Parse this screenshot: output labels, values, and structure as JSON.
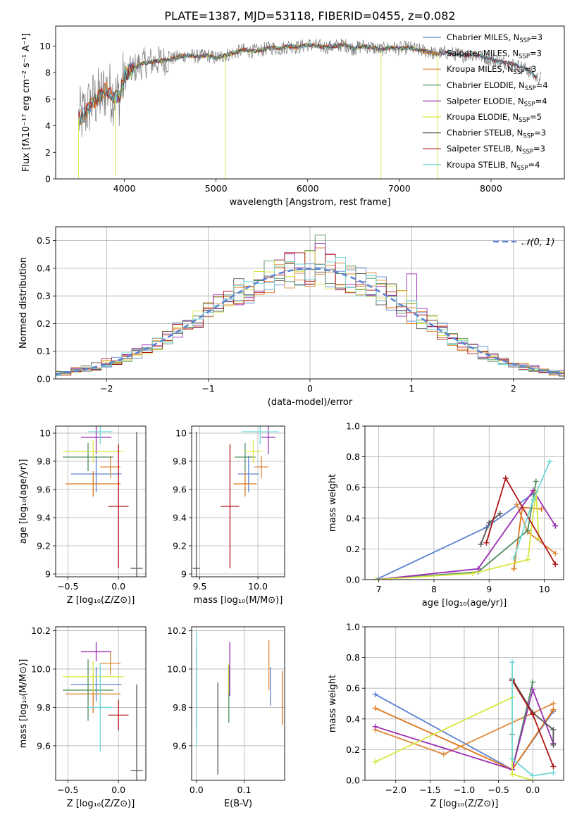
{
  "figure": {
    "title": "PLATE=1387, MJD=53118, FIBERID=0455, z=0.082"
  },
  "colors": {
    "Chabrier MILES": "#5b83d2",
    "Salpeter MILES": "#e0761a",
    "Kroupa MILES": "#e08a3c",
    "Chabrier ELODIE": "#4f8f5f",
    "Salpeter ELODIE": "#9a2db3",
    "Kroupa ELODIE": "#d8e640",
    "Chabrier STELIB": "#555555",
    "Salpeter STELIB": "#b01515",
    "Kroupa STELIB": "#6fd6d6",
    "grid": "#b0b0b0",
    "normal_curve": "#5b83d2"
  },
  "chart_data": [
    {
      "id": "spectrum",
      "type": "line",
      "xlabel": "wavelength [Angstrom, rest frame]",
      "ylabel": "Flux [fλ10⁻¹⁷ erg cm⁻² s⁻¹ A⁻¹]",
      "xlim": [
        3250,
        8800
      ],
      "ylim": [
        0,
        11.5
      ],
      "xticks": [
        4000,
        5000,
        6000,
        7000,
        8000
      ],
      "yticks": [
        0,
        2,
        4,
        6,
        8,
        10
      ],
      "grid": false,
      "legend_position": "right",
      "legend": [
        {
          "label": "Chabrier MILES, N",
          "sub": "SSP",
          "tail": "=3",
          "color": "#5b83d2"
        },
        {
          "label": "Salpeter MILES, N",
          "sub": "SSP",
          "tail": "=3",
          "color": "#e0761a"
        },
        {
          "label": "Kroupa MILES, N",
          "sub": "SSP",
          "tail": "=3",
          "color": "#e08a3c"
        },
        {
          "label": "Chabrier ELODIE, N",
          "sub": "SSP",
          "tail": "=4",
          "color": "#4f8f5f"
        },
        {
          "label": "Salpeter ELODIE, N",
          "sub": "SSP",
          "tail": "=4",
          "color": "#9a2db3"
        },
        {
          "label": "Kroupa ELODIE, N",
          "sub": "SSP",
          "tail": "=5",
          "color": "#d8e640"
        },
        {
          "label": "Chabrier STELIB, N",
          "sub": "SSP",
          "tail": "=3",
          "color": "#555555"
        },
        {
          "label": "Salpeter STELIB, N",
          "sub": "SSP",
          "tail": "=3",
          "color": "#b01515"
        },
        {
          "label": "Kroupa STELIB, N",
          "sub": "SSP",
          "tail": "=4",
          "color": "#6fd6d6"
        }
      ],
      "model_start": [
        3500,
        3500,
        3500,
        3900,
        3900,
        3900,
        3500,
        3500,
        3500
      ],
      "model_end": [
        7400,
        7400,
        7400,
        8400,
        8400,
        7400,
        8500,
        8500,
        8500
      ],
      "envelope": {
        "x": [
          3500,
          3550,
          3600,
          3650,
          3700,
          3750,
          3800,
          3850,
          3900,
          3950,
          4000,
          4050,
          4100,
          4200,
          4300,
          4400,
          4500,
          4600,
          4700,
          4800,
          4900,
          5000,
          5100,
          5200,
          5300,
          5400,
          5500,
          5600,
          5700,
          5800,
          5900,
          6000,
          6100,
          6200,
          6300,
          6400,
          6500,
          6600,
          6700,
          6800,
          6900,
          7000,
          7100,
          7200,
          7300,
          7400,
          7500,
          7600,
          7700,
          7800,
          7900,
          8000,
          8100,
          8200,
          8300,
          8400,
          8500
        ],
        "y": [
          4.5,
          4.8,
          5.3,
          5.8,
          6.0,
          6.3,
          6.8,
          6.5,
          6.2,
          6.3,
          7.8,
          8.0,
          8.3,
          8.7,
          8.8,
          8.9,
          9.0,
          9.2,
          9.3,
          9.2,
          9.3,
          9.1,
          9.3,
          9.5,
          9.7,
          9.6,
          9.7,
          9.9,
          9.8,
          10.0,
          9.9,
          10.1,
          10.0,
          9.9,
          10.0,
          10.1,
          9.8,
          10.0,
          9.9,
          9.7,
          9.9,
          9.8,
          9.9,
          9.7,
          9.6,
          9.4,
          9.5,
          9.4,
          9.3,
          9.4,
          9.2,
          9.0,
          8.8,
          8.7,
          8.5,
          8.2,
          7.6
        ]
      }
    },
    {
      "id": "residuals",
      "type": "histogram",
      "xlabel": "(data-model)/error",
      "ylabel": "Normed distribution",
      "xlim": [
        -2.5,
        2.5
      ],
      "ylim": [
        0,
        0.55
      ],
      "xticks": [
        -2,
        -1,
        0,
        1,
        2
      ],
      "xticklabels": [
        "−2",
        "−1",
        "0",
        "1",
        "2"
      ],
      "yticks": [
        0.0,
        0.1,
        0.2,
        0.3,
        0.4,
        0.5
      ],
      "yticklabels": [
        "0.0",
        "0.1",
        "0.2",
        "0.3",
        "0.4",
        "0.5"
      ],
      "grid": true,
      "bin_width": 0.1,
      "legend": [
        {
          "label": "𝒩(0, 1)",
          "color": "#5b83d2",
          "style": "dashed"
        }
      ],
      "peak_bins": [
        {
          "x": 0.1,
          "height": 0.52,
          "color": "#4f8f5f"
        },
        {
          "x": 0.1,
          "height": 0.49,
          "color": "#9a2db3"
        },
        {
          "x": 0.2,
          "height": 0.45,
          "color": "#b01515"
        },
        {
          "x": -0.3,
          "height": 0.43,
          "color": "#9a2db3"
        },
        {
          "x": 1.0,
          "height": 0.38,
          "color": "#9a2db3"
        }
      ]
    },
    {
      "id": "age-vs-Z",
      "type": "errorbar",
      "xlabel": "Z [log₁₀(Z/Z⊙)]",
      "ylabel": "age  [log₁₀(age/yr)]",
      "xlim": [
        -0.62,
        0.27
      ],
      "ylim": [
        8.98,
        10.05
      ],
      "xticks": [
        -0.5,
        0.0
      ],
      "xticklabels": [
        "−0.5",
        "0.0"
      ],
      "yticks": [
        9.0,
        9.2,
        9.4,
        9.6,
        9.8,
        10.0
      ],
      "grid": true,
      "points": [
        {
          "model": "Chabrier MILES",
          "x": -0.22,
          "y": 9.71,
          "xerr": 0.25,
          "yerr": 0.13
        },
        {
          "model": "Salpeter MILES",
          "x": -0.25,
          "y": 9.64,
          "xerr": 0.27,
          "yerr": 0.09
        },
        {
          "model": "Kroupa MILES",
          "x": -0.08,
          "y": 9.76,
          "xerr": 0.1,
          "yerr": 0.08
        },
        {
          "model": "Chabrier ELODIE",
          "x": -0.3,
          "y": 9.83,
          "xerr": 0.25,
          "yerr": 0.1
        },
        {
          "model": "Salpeter ELODIE",
          "x": -0.22,
          "y": 9.97,
          "xerr": 0.15,
          "yerr": 0.12
        },
        {
          "model": "Kroupa ELODIE",
          "x": -0.25,
          "y": 9.87,
          "xerr": 0.3,
          "yerr": 0.08
        },
        {
          "model": "Chabrier STELIB",
          "x": 0.18,
          "y": 9.04,
          "xerr": 0.06,
          "yerr": 0.97
        },
        {
          "model": "Salpeter STELIB",
          "x": 0.0,
          "y": 9.48,
          "xerr": 0.1,
          "yerr": 0.44
        },
        {
          "model": "Kroupa STELIB",
          "x": -0.18,
          "y": 10.01,
          "xerr": 0.12,
          "yerr": 0.09
        }
      ]
    },
    {
      "id": "age-vs-mass",
      "type": "errorbar",
      "xlabel": "mass [log₁₀(M/M⊙)]",
      "ylabel": "",
      "xlim": [
        9.43,
        10.23
      ],
      "ylim": [
        8.98,
        10.05
      ],
      "xticks": [
        9.5,
        10.0
      ],
      "xticklabels": [
        "9.5",
        "10.0"
      ],
      "yticks": [
        9.0,
        9.2,
        9.4,
        9.6,
        9.8,
        10.0
      ],
      "grid": true,
      "points": [
        {
          "model": "Chabrier MILES",
          "x": 9.92,
          "y": 9.71,
          "xerr": 0.09,
          "yerr": 0.13
        },
        {
          "model": "Salpeter MILES",
          "x": 9.89,
          "y": 9.64,
          "xerr": 0.1,
          "yerr": 0.09
        },
        {
          "model": "Kroupa MILES",
          "x": 10.03,
          "y": 9.76,
          "xerr": 0.06,
          "yerr": 0.08
        },
        {
          "model": "Chabrier ELODIE",
          "x": 9.89,
          "y": 9.83,
          "xerr": 0.09,
          "yerr": 0.1
        },
        {
          "model": "Salpeter ELODIE",
          "x": 10.09,
          "y": 9.97,
          "xerr": 0.06,
          "yerr": 0.12
        },
        {
          "model": "Kroupa ELODIE",
          "x": 9.96,
          "y": 9.87,
          "xerr": 0.08,
          "yerr": 0.08
        },
        {
          "model": "Chabrier STELIB",
          "x": 9.47,
          "y": 9.04,
          "xerr": 0.03,
          "yerr": 0.97
        },
        {
          "model": "Salpeter STELIB",
          "x": 9.76,
          "y": 9.48,
          "xerr": 0.08,
          "yerr": 0.44
        },
        {
          "model": "Kroupa STELIB",
          "x": 10.02,
          "y": 10.01,
          "xerr": 0.16,
          "yerr": 0.09
        }
      ]
    },
    {
      "id": "massweight-vs-age",
      "type": "line",
      "xlabel": "age  [log₁₀(age/yr)]",
      "ylabel": "mass weight",
      "xlim": [
        6.75,
        10.35
      ],
      "ylim": [
        0,
        1.0
      ],
      "xticks": [
        7,
        8,
        9,
        10
      ],
      "xticklabels": [
        "7",
        "8",
        "9",
        "10"
      ],
      "yticks": [
        0.0,
        0.2,
        0.4,
        0.6,
        0.8,
        1.0
      ],
      "yticklabels": [
        "0.0",
        "0.2",
        "0.4",
        "0.6",
        "0.8",
        "1.0"
      ],
      "grid": true,
      "series": [
        {
          "model": "Chabrier MILES",
          "x": [
            6.95,
            8.95,
            9.8
          ],
          "y": [
            0.0,
            0.34,
            0.56
          ]
        },
        {
          "model": "Salpeter MILES",
          "x": [
            9.45,
            9.6,
            9.95
          ],
          "y": [
            0.07,
            0.47,
            0.46
          ]
        },
        {
          "model": "Kroupa MILES",
          "x": [
            9.5,
            9.7,
            10.2
          ],
          "y": [
            0.49,
            0.31,
            0.17
          ]
        },
        {
          "model": "Chabrier ELODIE",
          "x": [
            6.95,
            8.8,
            9.7,
            9.85
          ],
          "y": [
            0.0,
            0.05,
            0.32,
            0.64
          ]
        },
        {
          "model": "Salpeter ELODIE",
          "x": [
            6.95,
            8.8,
            9.8,
            10.2
          ],
          "y": [
            0.0,
            0.07,
            0.58,
            0.35
          ]
        },
        {
          "model": "Kroupa ELODIE",
          "x": [
            6.95,
            8.7,
            9.7,
            9.85,
            9.9
          ],
          "y": [
            0.0,
            0.04,
            0.13,
            0.57,
            0.27
          ]
        },
        {
          "model": "Chabrier STELIB",
          "x": [
            8.85,
            9.0,
            9.2
          ],
          "y": [
            0.23,
            0.37,
            0.43
          ]
        },
        {
          "model": "Salpeter STELIB",
          "x": [
            8.95,
            9.3,
            10.2
          ],
          "y": [
            0.24,
            0.66,
            0.1
          ]
        },
        {
          "model": "Kroupa STELIB",
          "x": [
            9.45,
            9.8,
            10.1
          ],
          "y": [
            0.14,
            0.52,
            0.77
          ]
        }
      ]
    },
    {
      "id": "mass-vs-Z",
      "type": "errorbar",
      "xlabel": "Z [log₁₀(Z/Z⊙)]",
      "ylabel": "mass [log₁₀(M/M⊙)]",
      "xlim": [
        -0.62,
        0.27
      ],
      "ylim": [
        9.42,
        10.22
      ],
      "xticks": [
        -0.5,
        0.0
      ],
      "xticklabels": [
        "−0.5",
        "0.0"
      ],
      "yticks": [
        9.6,
        9.8,
        10.0,
        10.2
      ],
      "yticklabels": [
        "9.6",
        "9.8",
        "10.0",
        "10.2"
      ],
      "grid": true,
      "points": [
        {
          "model": "Chabrier MILES",
          "x": -0.22,
          "y": 9.92,
          "xerr": 0.25,
          "yerr": 0.09
        },
        {
          "model": "Salpeter MILES",
          "x": -0.25,
          "y": 9.87,
          "xerr": 0.27,
          "yerr": 0.1
        },
        {
          "model": "Kroupa MILES",
          "x": -0.08,
          "y": 10.03,
          "xerr": 0.1,
          "yerr": 0.06
        },
        {
          "model": "Chabrier ELODIE",
          "x": -0.3,
          "y": 9.89,
          "xerr": 0.25,
          "yerr": 0.16
        },
        {
          "model": "Salpeter ELODIE",
          "x": -0.22,
          "y": 10.09,
          "xerr": 0.15,
          "yerr": 0.05
        },
        {
          "model": "Kroupa ELODIE",
          "x": -0.25,
          "y": 9.96,
          "xerr": 0.3,
          "yerr": 0.08
        },
        {
          "model": "Chabrier STELIB",
          "x": 0.18,
          "y": 9.47,
          "xerr": 0.06,
          "yerr": 0.45
        },
        {
          "model": "Salpeter STELIB",
          "x": 0.0,
          "y": 9.76,
          "xerr": 0.1,
          "yerr": 0.08
        },
        {
          "model": "Kroupa STELIB",
          "x": -0.18,
          "y": 9.8,
          "xerr": 0.12,
          "yerr": 0.23
        }
      ]
    },
    {
      "id": "mass-vs-EBV",
      "type": "errorbar",
      "xlabel": "E(B-V)",
      "ylabel": "",
      "xlim": [
        -0.01,
        0.185
      ],
      "ylim": [
        9.42,
        10.22
      ],
      "xticks": [
        0.0,
        0.1
      ],
      "xticklabels": [
        "0.0",
        "0.1"
      ],
      "yticks": [
        9.6,
        9.8,
        10.0,
        10.2
      ],
      "yticklabels": [
        "9.6",
        "9.8",
        "10.0",
        "10.2"
      ],
      "grid": true,
      "points": [
        {
          "model": "Chabrier MILES",
          "x": 0.155,
          "y": 9.91,
          "xerr": 0.0,
          "yerr": 0.1
        },
        {
          "model": "Salpeter MILES",
          "x": 0.18,
          "y": 9.85,
          "xerr": 0.0,
          "yerr": 0.14
        },
        {
          "model": "Kroupa MILES",
          "x": 0.152,
          "y": 10.02,
          "xerr": 0.0,
          "yerr": 0.13
        },
        {
          "model": "Chabrier ELODIE",
          "x": 0.068,
          "y": 9.87,
          "xerr": 0.0,
          "yerr": 0.15
        },
        {
          "model": "Salpeter ELODIE",
          "x": 0.07,
          "y": 10.0,
          "xerr": 0.0,
          "yerr": 0.14
        },
        {
          "model": "Kroupa ELODIE",
          "x": 0.067,
          "y": 9.95,
          "xerr": 0.0,
          "yerr": 0.08
        },
        {
          "model": "Chabrier STELIB",
          "x": 0.045,
          "y": 9.69,
          "xerr": 0.0,
          "yerr": 0.24
        },
        {
          "model": "Salpeter STELIB",
          "x": 0.0,
          "y": 9.9,
          "xerr": 0.0,
          "yerr": 0.2
        },
        {
          "model": "Kroupa STELIB",
          "x": 0.0,
          "y": 9.9,
          "xerr": 0.0,
          "yerr": 0.3
        }
      ]
    },
    {
      "id": "massweight-vs-Z",
      "type": "line",
      "xlabel": "Z [log₁₀(Z/Z⊙)]",
      "ylabel": "mass weight",
      "xlim": [
        -2.45,
        0.45
      ],
      "ylim": [
        0,
        1.0
      ],
      "xticks": [
        -2.0,
        -1.5,
        -1.0,
        -0.5,
        0.0
      ],
      "xticklabels": [
        "−2.0",
        "−1.5",
        "−1.0",
        "−0.5",
        "0.0"
      ],
      "yticks": [
        0.0,
        0.2,
        0.4,
        0.6,
        0.8,
        1.0
      ],
      "yticklabels": [
        "0.0",
        "0.2",
        "0.4",
        "0.6",
        "0.8",
        "1.0"
      ],
      "grid": true,
      "series": [
        {
          "model": "Chabrier MILES",
          "x": [
            -2.3,
            -0.3,
            0.3
          ],
          "y": [
            0.56,
            0.07,
            0.45
          ]
        },
        {
          "model": "Salpeter MILES",
          "x": [
            -2.3,
            -0.3,
            0.3
          ],
          "y": [
            0.47,
            0.07,
            0.46
          ]
        },
        {
          "model": "Kroupa MILES",
          "x": [
            -2.3,
            -1.3,
            0.3
          ],
          "y": [
            0.33,
            0.17,
            0.5
          ]
        },
        {
          "model": "Chabrier ELODIE",
          "x": [
            -0.3,
            -0.3,
            0.0
          ],
          "y": [
            0.3,
            0.07,
            0.64
          ]
        },
        {
          "model": "Salpeter ELODIE",
          "x": [
            -2.3,
            -0.3,
            0.0,
            0.3
          ],
          "y": [
            0.35,
            0.07,
            0.59,
            0.24
          ]
        },
        {
          "model": "Kroupa ELODIE",
          "x": [
            -2.3,
            -0.3,
            -0.3,
            0.0
          ],
          "y": [
            0.12,
            0.54,
            0.04,
            0.0
          ]
        },
        {
          "model": "Chabrier STELIB",
          "x": [
            -0.3,
            0.0,
            0.3,
            0.3
          ],
          "y": [
            0.66,
            0.44,
            0.33,
            0.23
          ]
        },
        {
          "model": "Salpeter STELIB",
          "x": [
            -0.3,
            0.0,
            0.3
          ],
          "y": [
            0.65,
            0.43,
            0.09
          ]
        },
        {
          "model": "Kroupa STELIB",
          "x": [
            -0.3,
            -0.3,
            0.0,
            0.3
          ],
          "y": [
            0.77,
            0.14,
            0.03,
            0.05
          ]
        }
      ]
    }
  ]
}
